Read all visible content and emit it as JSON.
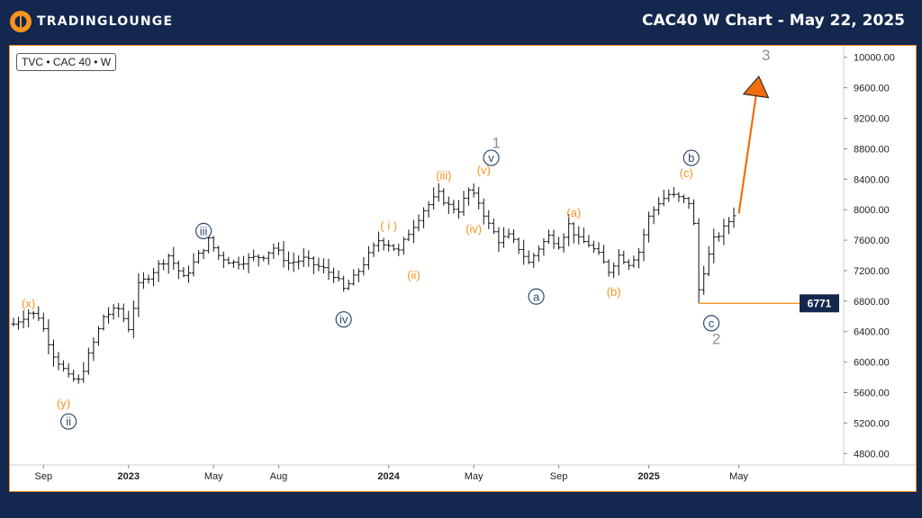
{
  "header": {
    "brand": "TRADINGLOUNGE",
    "title": "CAC40 W Chart - May 22, 2025"
  },
  "symbol_label": "TVC • CAC 40 • W",
  "colors": {
    "background": "#14274e",
    "accent": "#f7931e",
    "wave_orange": "#f7931e",
    "wave_navy": "#2d4a6e",
    "wave_gray": "#8a8f99",
    "price_tag_bg": "#14274e",
    "bar": "#111111",
    "arrow": "#f26d0f"
  },
  "chart_data": {
    "type": "ohlc",
    "title": "CAC40 W Chart - May 22, 2025",
    "ylim": [
      4650,
      10150
    ],
    "y_ticks": [
      4800,
      5200,
      5600,
      6000,
      6400,
      6800,
      7200,
      7600,
      8000,
      8400,
      8800,
      9200,
      9600,
      10000
    ],
    "y_tick_labels": [
      "4800.00",
      "5200.00",
      "5600.00",
      "6000.00",
      "6400.00",
      "6800.00",
      "7200.00",
      "7600.00",
      "8000.00",
      "8400.00",
      "8800.00",
      "9200.00",
      "9600.00",
      "10000.00"
    ],
    "x_ticks": [
      {
        "label": "Sep",
        "week": 6,
        "bold": false
      },
      {
        "label": "2023",
        "week": 23,
        "bold": true
      },
      {
        "label": "May",
        "week": 40,
        "bold": false
      },
      {
        "label": "Aug",
        "week": 53,
        "bold": false
      },
      {
        "label": "2024",
        "week": 75,
        "bold": true
      },
      {
        "label": "May",
        "week": 92,
        "bold": false
      },
      {
        "label": "Sep",
        "week": 109,
        "bold": false
      },
      {
        "label": "2025",
        "week": 127,
        "bold": true
      },
      {
        "label": "May",
        "week": 145,
        "bold": false
      }
    ],
    "x_range_weeks": [
      0,
      162
    ],
    "anchors": [
      [
        0,
        6500
      ],
      [
        3,
        6650
      ],
      [
        5,
        6600
      ],
      [
        8,
        6100
      ],
      [
        11,
        5800
      ],
      [
        13,
        5750
      ],
      [
        16,
        6250
      ],
      [
        18,
        6600
      ],
      [
        21,
        6700
      ],
      [
        23,
        6450
      ],
      [
        25,
        7000
      ],
      [
        28,
        7200
      ],
      [
        31,
        7400
      ],
      [
        34,
        7100
      ],
      [
        37,
        7400
      ],
      [
        39,
        7600
      ],
      [
        41,
        7400
      ],
      [
        44,
        7300
      ],
      [
        47,
        7350
      ],
      [
        50,
        7400
      ],
      [
        52,
        7500
      ],
      [
        55,
        7300
      ],
      [
        58,
        7350
      ],
      [
        61,
        7250
      ],
      [
        64,
        7150
      ],
      [
        66,
        6950
      ],
      [
        68,
        7100
      ],
      [
        71,
        7400
      ],
      [
        73,
        7600
      ],
      [
        75,
        7550
      ],
      [
        77,
        7450
      ],
      [
        79,
        7700
      ],
      [
        82,
        8000
      ],
      [
        85,
        8200
      ],
      [
        87,
        8050
      ],
      [
        89,
        8000
      ],
      [
        91,
        8250
      ],
      [
        93,
        8100
      ],
      [
        95,
        7800
      ],
      [
        97,
        7600
      ],
      [
        99,
        7650
      ],
      [
        101,
        7500
      ],
      [
        103,
        7300
      ],
      [
        105,
        7500
      ],
      [
        107,
        7650
      ],
      [
        109,
        7550
      ],
      [
        111,
        7800
      ],
      [
        113,
        7600
      ],
      [
        115,
        7550
      ],
      [
        117,
        7400
      ],
      [
        119,
        7200
      ],
      [
        121,
        7400
      ],
      [
        123,
        7300
      ],
      [
        125,
        7450
      ],
      [
        127,
        7900
      ],
      [
        129,
        8100
      ],
      [
        131,
        8200
      ],
      [
        133,
        8150
      ],
      [
        135,
        8100
      ],
      [
        136,
        7800
      ],
      [
        137,
        6950
      ],
      [
        138,
        7200
      ],
      [
        140,
        7600
      ],
      [
        142,
        7750
      ],
      [
        144,
        7950
      ]
    ],
    "price_line": {
      "value": 6771,
      "label": "6771"
    },
    "projection_arrow": {
      "from": [
        145,
        7950
      ],
      "to": [
        149,
        9750
      ],
      "label": "3"
    },
    "wave_labels": [
      {
        "text": "(x)",
        "week": 3,
        "price": 6770,
        "style": "orange",
        "circled": false
      },
      {
        "text": "(y)",
        "week": 10,
        "price": 5460,
        "style": "orange",
        "circled": false
      },
      {
        "text": "ii",
        "week": 11,
        "price": 5220,
        "style": "navy",
        "circled": true
      },
      {
        "text": "iii",
        "week": 38,
        "price": 7720,
        "style": "navy",
        "circled": true
      },
      {
        "text": "iv",
        "week": 66,
        "price": 6560,
        "style": "navy",
        "circled": true
      },
      {
        "text": "( i )",
        "week": 75,
        "price": 7790,
        "style": "orange",
        "circled": false
      },
      {
        "text": "(ii)",
        "week": 80,
        "price": 7140,
        "style": "orange",
        "circled": false
      },
      {
        "text": "(iii)",
        "week": 86,
        "price": 8450,
        "style": "orange",
        "circled": false
      },
      {
        "text": "(iv)",
        "week": 92,
        "price": 7750,
        "style": "orange",
        "circled": false
      },
      {
        "text": "(v)",
        "week": 94,
        "price": 8520,
        "style": "orange",
        "circled": false
      },
      {
        "text": "v",
        "week": 95.5,
        "price": 8680,
        "style": "navy",
        "circled": true
      },
      {
        "text": "1",
        "week": 96.5,
        "price": 8880,
        "style": "gray",
        "circled": false
      },
      {
        "text": "a",
        "week": 104.5,
        "price": 6860,
        "style": "navy",
        "circled": true
      },
      {
        "text": "(a)",
        "week": 112,
        "price": 7960,
        "style": "orange",
        "circled": false
      },
      {
        "text": "(b)",
        "week": 120,
        "price": 6920,
        "style": "orange",
        "circled": false
      },
      {
        "text": "(c)",
        "week": 134.5,
        "price": 8480,
        "style": "orange",
        "circled": false
      },
      {
        "text": "b",
        "week": 135.5,
        "price": 8680,
        "style": "navy",
        "circled": true
      },
      {
        "text": "c",
        "week": 139.5,
        "price": 6510,
        "style": "navy",
        "circled": true
      },
      {
        "text": "2",
        "week": 140.5,
        "price": 6310,
        "style": "gray",
        "circled": false
      }
    ]
  }
}
